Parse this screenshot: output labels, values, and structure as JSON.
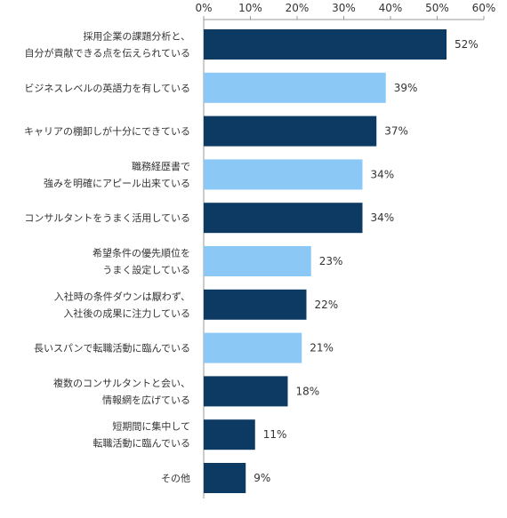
{
  "chart_data": {
    "type": "bar",
    "orientation": "horizontal",
    "x_ticks": [
      "0%",
      "10%",
      "20%",
      "30%",
      "40%",
      "50%",
      "60%"
    ],
    "xlim": [
      0,
      60
    ],
    "categories": [
      [
        "採用企業の課題分析と、",
        "自分が貢献できる点を伝えられている"
      ],
      [
        "ビジネスレベルの英語力を有している"
      ],
      [
        "キャリアの棚卸しが十分にできている"
      ],
      [
        "職務経歴書で",
        "強みを明確にアピール出来ている"
      ],
      [
        "コンサルタントをうまく活用している"
      ],
      [
        "希望条件の優先順位を",
        "うまく設定している"
      ],
      [
        "入社時の条件ダウンは厭わず、",
        "入社後の成果に注力している"
      ],
      [
        "長いスパンで転職活動に臨んでいる"
      ],
      [
        "複数のコンサルタントと会い、",
        "情報網を広げている"
      ],
      [
        "短期間に集中して",
        "転職活動に臨んでいる"
      ],
      [
        "その他"
      ]
    ],
    "values": [
      52,
      39,
      37,
      34,
      34,
      23,
      22,
      21,
      18,
      11,
      9
    ],
    "value_labels": [
      "52%",
      "39%",
      "37%",
      "34%",
      "34%",
      "23%",
      "22%",
      "21%",
      "18%",
      "11%",
      "9%"
    ],
    "bar_colors": [
      "dark",
      "light",
      "dark",
      "light",
      "dark",
      "light",
      "dark",
      "light",
      "dark",
      "dark",
      "dark"
    ],
    "colors": {
      "dark": "#0d3a63",
      "light": "#8cc8f5",
      "axis": "#999999",
      "text": "#333333"
    },
    "grid": false,
    "legend": "none"
  }
}
